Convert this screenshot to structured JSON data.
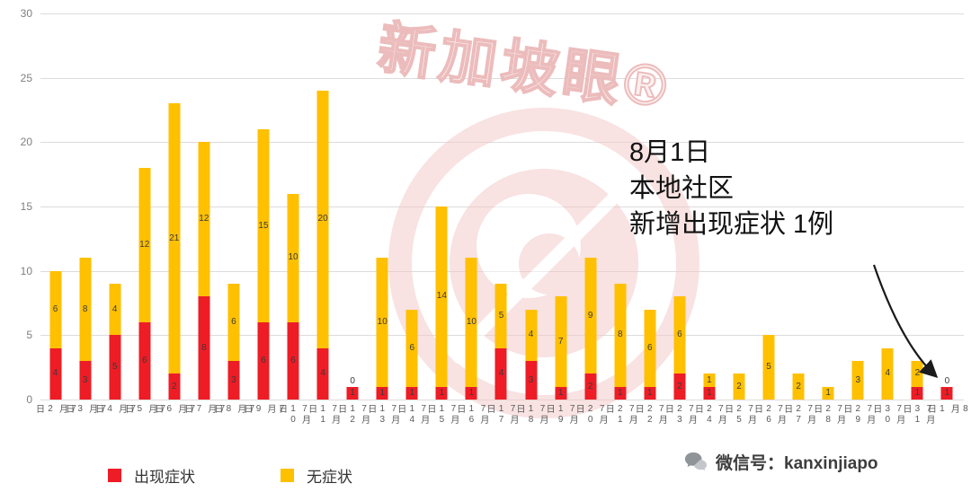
{
  "chart_data": {
    "type": "bar",
    "stacked": true,
    "title": "",
    "xlabel": "",
    "ylabel": "",
    "ylim": [
      0,
      30
    ],
    "yticks": [
      0,
      5,
      10,
      15,
      20,
      25,
      30
    ],
    "grid": true,
    "value_labels": true,
    "legend_position": "bottom-left",
    "categories": [
      "7月2日",
      "7月3日",
      "7月4日",
      "7月5日",
      "7月6日",
      "7月7日",
      "7月8日",
      "7月9日",
      "7月10日",
      "7月11日",
      "7月12日",
      "7月13日",
      "7月14日",
      "7月15日",
      "7月16日",
      "7月17日",
      "7月18日",
      "7月19日",
      "7月20日",
      "7月21日",
      "7月22日",
      "7月23日",
      "7月24日",
      "7月25日",
      "7月26日",
      "7月27日",
      "7月28日",
      "7月29日",
      "7月30日",
      "7月31日",
      "8月1日"
    ],
    "series": [
      {
        "name": "出现症状",
        "color": "#ee1c25",
        "values": [
          4,
          3,
          5,
          6,
          2,
          8,
          3,
          6,
          6,
          4,
          1,
          1,
          1,
          1,
          1,
          4,
          3,
          1,
          2,
          1,
          1,
          2,
          1,
          0,
          0,
          0,
          0,
          0,
          0,
          1,
          1
        ]
      },
      {
        "name": "无症状",
        "color": "#ffc000",
        "values": [
          6,
          8,
          4,
          12,
          21,
          12,
          6,
          15,
          10,
          20,
          0,
          10,
          6,
          14,
          10,
          5,
          4,
          7,
          9,
          8,
          6,
          6,
          1,
          2,
          5,
          2,
          1,
          3,
          4,
          2,
          0
        ]
      }
    ],
    "annotation": {
      "lines": [
        "8月1日",
        "本地社区",
        "新增出现症状 1例"
      ],
      "points_to": "8月1日"
    }
  },
  "watermark": {
    "brand": "新加坡眼®"
  },
  "footer": {
    "wechat_label": "微信号：kanxinjiapo"
  },
  "colors": {
    "symptomatic": "#ee1c25",
    "asymptomatic": "#ffc000",
    "grid": "#dcdcdc",
    "axis_text": "#7f7f7f",
    "bar_label_text": "#3a3a3a",
    "watermark_pink": "#f2c7c7",
    "annotation_text": "#111111"
  }
}
